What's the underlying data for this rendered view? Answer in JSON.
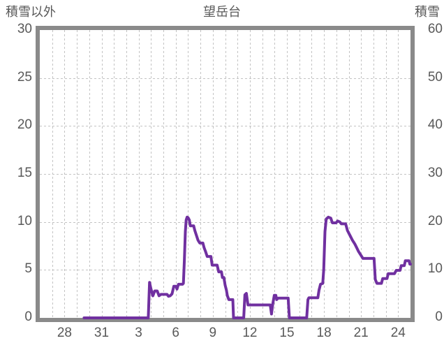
{
  "header": {
    "left_axis_label": "積雪以外",
    "title": "望岳台",
    "right_axis_label": "積雪"
  },
  "colors": {
    "line": "#7030a0",
    "frame": "#8a8a8a",
    "grid": "#c3c3c3",
    "text": "#595959",
    "background": "#ffffff"
  },
  "chart_data": {
    "type": "line",
    "title": "望岳台",
    "legend_position": "none",
    "grid": true,
    "left_axis": {
      "label": "積雪以外",
      "min": 0,
      "max": 30,
      "tick_step": 5,
      "ticks": [
        0,
        5,
        10,
        15,
        20,
        25,
        30
      ]
    },
    "right_axis": {
      "label": "積雪",
      "min": 0,
      "max": 60,
      "tick_step": 10,
      "ticks": [
        0,
        10,
        20,
        30,
        40,
        50,
        60
      ]
    },
    "x_axis": {
      "description": "days, axis spans Dec 26 to Jan 25 (30 days), minor gridline every day",
      "tick_labels": [
        "28",
        "31",
        "3",
        "6",
        "9",
        "12",
        "15",
        "18",
        "21",
        "24"
      ],
      "tick_day_positions": [
        2,
        5,
        8,
        11,
        14,
        17,
        20,
        23,
        26,
        29
      ],
      "days_total": 30,
      "minor_grid_every_day": true
    },
    "series": [
      {
        "name": "積雪",
        "color": "#7030a0",
        "value_axis": "left",
        "points": [
          [
            3.58,
            0
          ],
          [
            8.78,
            0
          ],
          [
            8.88,
            3.7
          ],
          [
            9.0,
            3.0
          ],
          [
            9.15,
            2.3
          ],
          [
            9.3,
            2.8
          ],
          [
            9.5,
            2.8
          ],
          [
            9.65,
            2.3
          ],
          [
            9.8,
            2.45
          ],
          [
            10.3,
            2.45
          ],
          [
            10.42,
            2.25
          ],
          [
            10.55,
            2.3
          ],
          [
            10.7,
            2.5
          ],
          [
            10.85,
            3.3
          ],
          [
            11.02,
            3.3
          ],
          [
            11.1,
            3.0
          ],
          [
            11.22,
            3.5
          ],
          [
            11.55,
            3.5
          ],
          [
            11.62,
            3.6
          ],
          [
            11.7,
            6.0
          ],
          [
            11.78,
            9.0
          ],
          [
            11.85,
            10.2
          ],
          [
            11.92,
            10.5
          ],
          [
            12.0,
            10.45
          ],
          [
            12.1,
            10.2
          ],
          [
            12.18,
            9.6
          ],
          [
            12.45,
            9.6
          ],
          [
            12.55,
            9.1
          ],
          [
            12.65,
            8.7
          ],
          [
            12.8,
            8.1
          ],
          [
            12.95,
            7.8
          ],
          [
            13.2,
            7.8
          ],
          [
            13.3,
            7.3
          ],
          [
            13.42,
            6.9
          ],
          [
            13.55,
            6.4
          ],
          [
            13.85,
            6.4
          ],
          [
            13.95,
            5.5
          ],
          [
            14.35,
            5.5
          ],
          [
            14.48,
            4.8
          ],
          [
            14.7,
            4.8
          ],
          [
            14.78,
            4.2
          ],
          [
            14.9,
            4.2
          ],
          [
            15.0,
            3.4
          ],
          [
            15.1,
            2.9
          ],
          [
            15.18,
            2.3
          ],
          [
            15.3,
            1.9
          ],
          [
            15.62,
            1.9
          ],
          [
            15.68,
            0
          ],
          [
            16.5,
            0
          ],
          [
            16.6,
            2.4
          ],
          [
            16.72,
            2.55
          ],
          [
            16.85,
            1.35
          ],
          [
            18.65,
            1.35
          ],
          [
            18.75,
            0.4
          ],
          [
            18.85,
            1.4
          ],
          [
            18.98,
            2.35
          ],
          [
            19.1,
            2.35
          ],
          [
            19.17,
            1.9
          ],
          [
            19.28,
            2.05
          ],
          [
            20.1,
            2.05
          ],
          [
            20.2,
            0
          ],
          [
            21.6,
            0
          ],
          [
            21.7,
            1.9
          ],
          [
            21.78,
            2.1
          ],
          [
            22.5,
            2.1
          ],
          [
            22.6,
            2.9
          ],
          [
            22.72,
            3.5
          ],
          [
            22.9,
            3.6
          ],
          [
            22.98,
            5.0
          ],
          [
            23.08,
            9.0
          ],
          [
            23.18,
            10.3
          ],
          [
            23.35,
            10.5
          ],
          [
            23.55,
            10.4
          ],
          [
            23.68,
            9.9
          ],
          [
            23.98,
            9.9
          ],
          [
            24.1,
            10.1
          ],
          [
            24.28,
            10.0
          ],
          [
            24.4,
            9.8
          ],
          [
            24.75,
            9.8
          ],
          [
            24.9,
            9.1
          ],
          [
            25.1,
            8.6
          ],
          [
            25.3,
            8.1
          ],
          [
            25.5,
            7.7
          ],
          [
            25.65,
            7.3
          ],
          [
            25.8,
            6.9
          ],
          [
            26.0,
            6.5
          ],
          [
            26.15,
            6.2
          ],
          [
            27.05,
            6.2
          ],
          [
            27.15,
            4.0
          ],
          [
            27.28,
            3.6
          ],
          [
            27.65,
            3.6
          ],
          [
            27.75,
            4.1
          ],
          [
            28.1,
            4.1
          ],
          [
            28.2,
            4.6
          ],
          [
            28.7,
            4.6
          ],
          [
            28.85,
            4.95
          ],
          [
            29.15,
            4.95
          ],
          [
            29.25,
            5.45
          ],
          [
            29.5,
            5.45
          ],
          [
            29.58,
            5.95
          ],
          [
            29.88,
            5.95
          ],
          [
            29.95,
            5.6
          ],
          [
            30.0,
            5.6
          ]
        ]
      }
    ]
  }
}
